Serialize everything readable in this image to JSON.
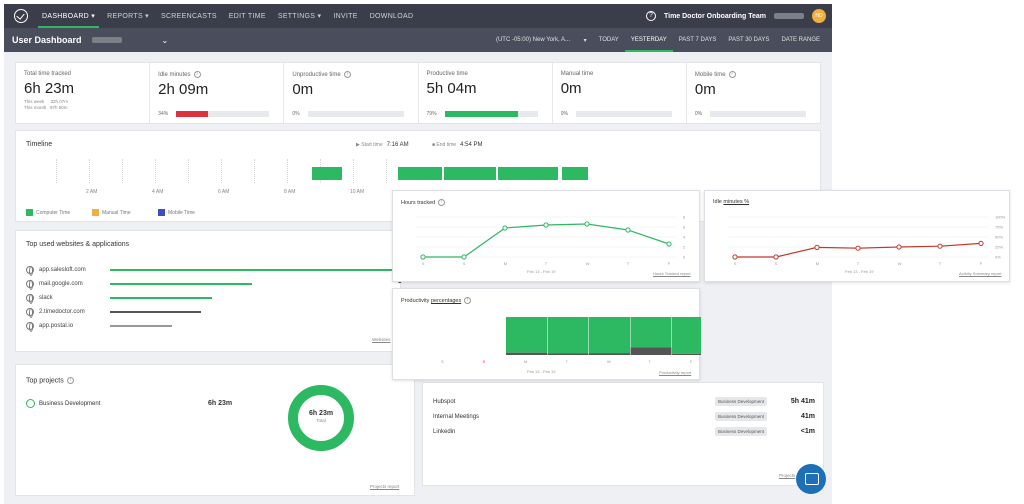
{
  "nav": {
    "items": [
      "DASHBOARD",
      "REPORTS",
      "SCREENCASTS",
      "EDIT TIME",
      "SETTINGS",
      "INVITE",
      "DOWNLOAD"
    ],
    "company": "Time Doctor Onboarding Team",
    "avatar_initials": "HD"
  },
  "subnav": {
    "title": "User Dashboard",
    "timezone": "(UTC -05:00) New York, A...",
    "ranges": [
      "TODAY",
      "YESTERDAY",
      "PAST 7 DAYS",
      "PAST 30 DAYS",
      "DATE RANGE"
    ]
  },
  "stats": [
    {
      "label": "Total time tracked",
      "value": "6h 23m",
      "week_label": "This week",
      "week": "32h 07m",
      "month_label": "This month",
      "month": "97h 50m"
    },
    {
      "label": "Idle minutes",
      "value": "2h 09m",
      "pct": "34%",
      "pct_value": 34,
      "color": "#d9333f"
    },
    {
      "label": "Unproductive time",
      "value": "0m",
      "pct": "0%",
      "pct_value": 0,
      "color": "#d9333f"
    },
    {
      "label": "Productive time",
      "value": "5h 04m",
      "pct": "79%",
      "pct_value": 79,
      "color": "#2db862"
    },
    {
      "label": "Manual time",
      "value": "0m",
      "pct": "0%",
      "pct_value": 0,
      "color": "#2db862"
    },
    {
      "label": "Mobile time",
      "value": "0m",
      "pct": "0%",
      "pct_value": 0,
      "color": "#2db862"
    }
  ],
  "timeline": {
    "title": "Timeline",
    "start_label": "Start time",
    "start": "7:16 AM",
    "end_label": "End time",
    "end": "4:54 PM",
    "hours": [
      "2 AM",
      "4 AM",
      "6 AM",
      "8 AM",
      "10 AM"
    ],
    "legend": [
      {
        "label": "Computer Time",
        "color": "#2db862"
      },
      {
        "label": "Manual Time",
        "color": "#f0b040"
      },
      {
        "label": "Mobile Time",
        "color": "#3b4fbf"
      }
    ]
  },
  "top_used": {
    "title": "Top used websites & applications",
    "sites": [
      {
        "name": "app.salesloft.com",
        "count": "2",
        "color": "#2db862",
        "share": 1.0
      },
      {
        "name": "mail.google.com",
        "count": "1",
        "color": "#2db862",
        "share": 0.5
      },
      {
        "name": "slack",
        "count": "",
        "color": "#2db862",
        "share": 0.36
      },
      {
        "name": "2.timedoctor.com",
        "count": "",
        "color": "#555",
        "share": 0.32
      },
      {
        "name": "app.postal.io",
        "count": "",
        "color": "#999",
        "share": 0.22
      }
    ],
    "link": "Websites"
  },
  "projects": {
    "title": "Top projects",
    "name": "Business Development",
    "value": "6h 23m",
    "donut_value": "6h 23m",
    "donut_label": "Total",
    "link": "Projects report"
  },
  "tasks": {
    "rows": [
      {
        "name": "Hubspot",
        "badge": "Business Development",
        "value": "5h 41m"
      },
      {
        "name": "Internal Meetings",
        "badge": "Business Development",
        "value": "41m"
      },
      {
        "name": "Linkedin",
        "badge": "Business Development",
        "value": "<1m"
      }
    ],
    "link": "Projects"
  },
  "hours_chart": {
    "title": "Hours tracked",
    "link": "Hours Tracked report",
    "range": "Feb 13 - Feb 19",
    "chart_data": {
      "type": "line",
      "categories": [
        "S",
        "S",
        "M",
        "T",
        "W",
        "T",
        "F"
      ],
      "y_ticks": [
        "0",
        "2",
        "4",
        "6",
        "8"
      ],
      "ylim": [
        0,
        8
      ],
      "values": [
        0,
        0,
        5.8,
        6.4,
        6.6,
        5.4,
        2.6
      ],
      "color": "#2db862"
    }
  },
  "idle_chart": {
    "title_prefix": "Idle",
    "title_link": "minutes %",
    "link": "Activity Summary report",
    "range": "Feb 13 - Feb 19",
    "chart_data": {
      "type": "line",
      "categories": [
        "S",
        "S",
        "M",
        "T",
        "W",
        "T",
        "F"
      ],
      "y_ticks": [
        "0%",
        "25%",
        "50%",
        "75%",
        "100%"
      ],
      "ylim": [
        0,
        100
      ],
      "values": [
        0,
        0,
        24,
        22,
        25,
        27,
        34
      ],
      "color": "#c0392b"
    }
  },
  "productivity_chart": {
    "title_prefix": "Productivity",
    "title_link": "percentages",
    "link": "Productivity report",
    "range": "Feb 13 - Feb 19",
    "chart_data": {
      "type": "bar",
      "categories": [
        "S",
        "S",
        "M",
        "T",
        "W",
        "T",
        "F"
      ],
      "series": [
        {
          "values": [
            0,
            0,
            94,
            96,
            95,
            80,
            97
          ],
          "color": "#2db862"
        },
        {
          "values": [
            0,
            0,
            6,
            4,
            5,
            20,
            3
          ],
          "color": "#555"
        }
      ]
    }
  }
}
